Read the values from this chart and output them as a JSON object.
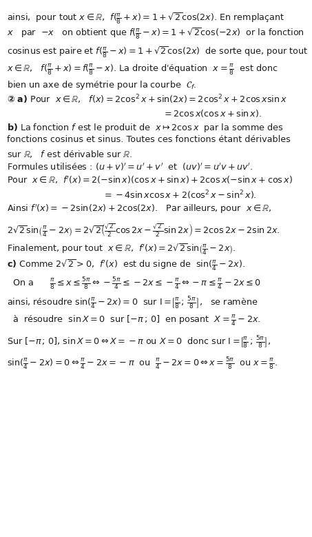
{
  "figsize": [
    4.53,
    7.79
  ],
  "dpi": 100,
  "bg_color": "#ffffff",
  "text_color": "#1c1c1c",
  "fs": 9.2
}
